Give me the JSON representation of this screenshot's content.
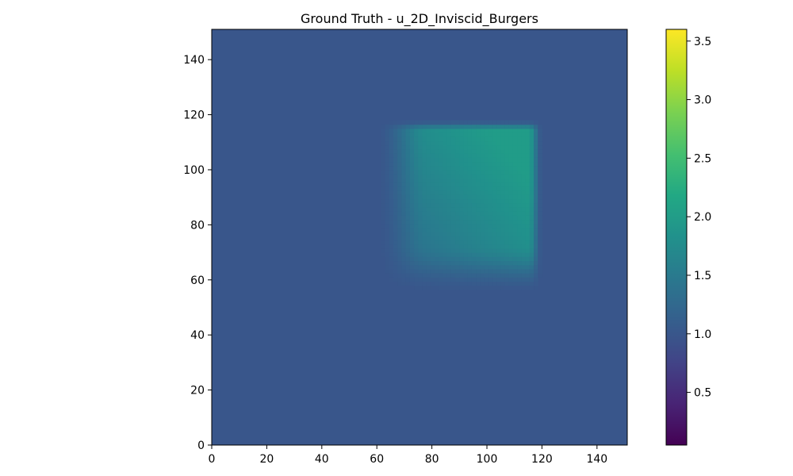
{
  "chart_data": {
    "type": "heatmap",
    "title": "Ground Truth - u_2D_Inviscid_Burgers",
    "xlabel": "",
    "ylabel": "",
    "xlim": [
      0,
      151
    ],
    "ylim": [
      0,
      151
    ],
    "x_ticks": [
      0,
      20,
      40,
      60,
      80,
      100,
      120,
      140
    ],
    "y_ticks": [
      0,
      20,
      40,
      60,
      80,
      100,
      120,
      140
    ],
    "x_tick_labels": [
      "0",
      "20",
      "40",
      "60",
      "80",
      "100",
      "120",
      "140"
    ],
    "y_tick_labels": [
      "0",
      "20",
      "40",
      "60",
      "80",
      "100",
      "120",
      "140"
    ],
    "colormap": "viridis",
    "grid": false,
    "field": {
      "background_value": 1.0,
      "blob": {
        "x_range": [
          60,
          120
        ],
        "y_range": [
          55,
          118
        ],
        "peak_value": 2.0,
        "peak_location": [
          105,
          110
        ],
        "min_value_inside": 1.15
      }
    },
    "colorbar": {
      "vmin": 0.05,
      "vmax": 3.6,
      "ticks": [
        0.5,
        1.0,
        1.5,
        2.0,
        2.5,
        3.0,
        3.5
      ],
      "tick_labels": [
        "0.5",
        "1.0",
        "1.5",
        "2.0",
        "2.5",
        "3.0",
        "3.5"
      ],
      "placement": "right"
    }
  }
}
